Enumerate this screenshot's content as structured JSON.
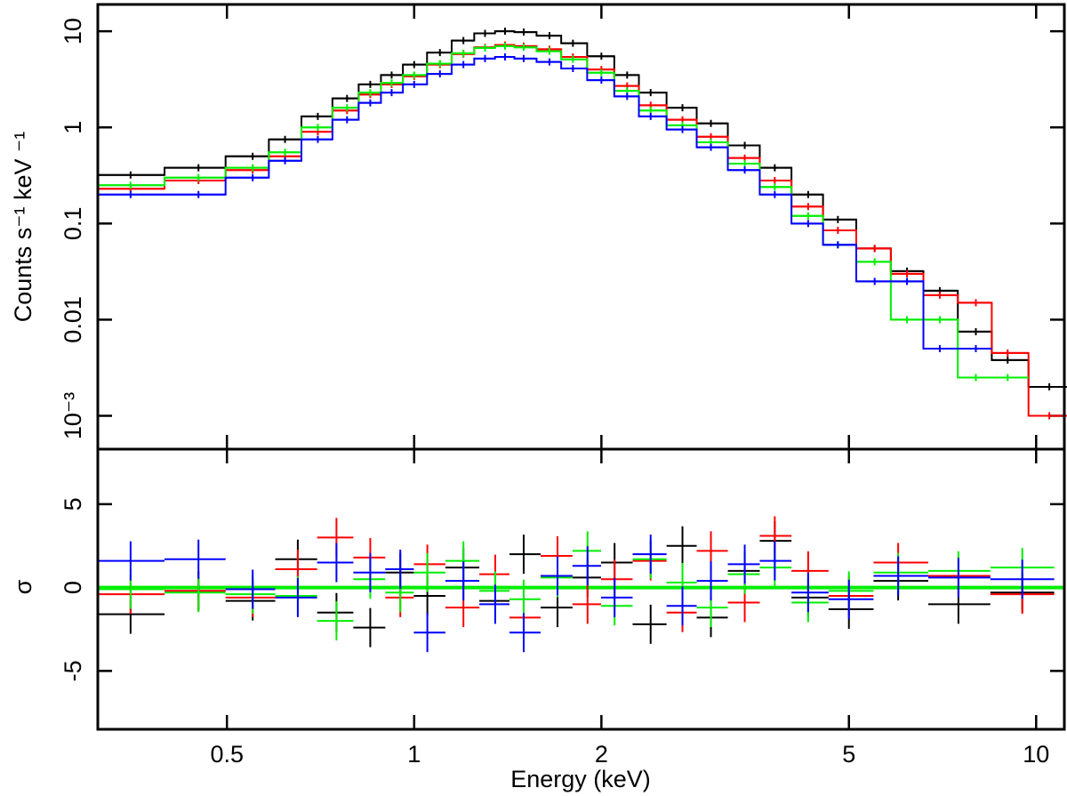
{
  "chart_data": [
    {
      "type": "line",
      "ylabel": "Counts s⁻¹ keV ⁻¹",
      "xlog": true,
      "ylog": true,
      "xlim": [
        0.31,
        11.1
      ],
      "ylim": [
        0.00045,
        19
      ],
      "yticks": [
        10,
        1,
        0.1,
        0.01,
        {
          "value": 0.001,
          "label": "10⁻³"
        }
      ],
      "x": [
        0.35,
        0.45,
        0.55,
        0.62,
        0.7,
        0.78,
        0.85,
        0.92,
        1.0,
        1.1,
        1.2,
        1.3,
        1.4,
        1.5,
        1.65,
        1.8,
        2.0,
        2.2,
        2.4,
        2.7,
        3.0,
        3.4,
        3.8,
        4.3,
        4.8,
        5.5,
        6.2,
        7.0,
        8.0,
        9.0,
        10.5
      ],
      "series": [
        {
          "color": "#000000",
          "values": [
            0.32,
            0.38,
            0.5,
            0.75,
            1.3,
            2.0,
            2.8,
            3.5,
            4.5,
            6,
            8,
            9.5,
            10,
            9.8,
            9,
            7.5,
            5.5,
            3.5,
            2.3,
            1.6,
            1.1,
            0.65,
            0.38,
            0.2,
            0.11,
            0.055,
            0.032,
            0.02,
            0.0075,
            0.0038,
            0.002
          ]
        },
        {
          "color": "#ff0000",
          "values": [
            0.23,
            0.28,
            0.36,
            0.5,
            0.9,
            1.5,
            2.2,
            2.8,
            3.4,
            4.5,
            5.8,
            6.8,
            7.2,
            7.0,
            6.5,
            5.4,
            4.0,
            2.7,
            1.7,
            1.2,
            0.8,
            0.48,
            0.28,
            0.15,
            0.085,
            0.055,
            0.03,
            0.018,
            0.015,
            0.0045,
            0.001
          ]
        },
        {
          "color": "#00ee00",
          "values": [
            0.25,
            0.3,
            0.38,
            0.55,
            1.0,
            1.6,
            2.3,
            2.9,
            3.5,
            4.6,
            5.9,
            6.7,
            7.0,
            6.8,
            6.2,
            5.1,
            3.7,
            2.4,
            1.5,
            1.05,
            0.7,
            0.42,
            0.24,
            0.12,
            0.06,
            0.04,
            0.01,
            0.01,
            0.0025,
            0.0025,
            null
          ]
        },
        {
          "color": "#0000ff",
          "values": [
            0.2,
            0.2,
            0.3,
            0.45,
            0.75,
            1.2,
            1.8,
            2.3,
            2.8,
            3.6,
            4.5,
            5.2,
            5.4,
            5.2,
            4.8,
            4.1,
            3.1,
            2.1,
            1.3,
            0.95,
            0.62,
            0.36,
            0.2,
            0.1,
            0.06,
            0.025,
            0.025,
            0.005,
            0.005,
            null,
            null
          ]
        }
      ]
    },
    {
      "type": "scatter",
      "xlabel": "Energy (keV)",
      "ylabel": "σ",
      "xlog": true,
      "ylog": false,
      "xlim": [
        0.31,
        11.1
      ],
      "ylim": [
        -8.5,
        8.3
      ],
      "xticks": [
        0.5,
        1,
        2,
        5,
        10
      ],
      "yticks": [
        5,
        0,
        -5
      ],
      "hline": 0,
      "hline_color": "#00ee00",
      "x": [
        0.35,
        0.45,
        0.55,
        0.65,
        0.75,
        0.85,
        0.95,
        1.05,
        1.2,
        1.35,
        1.5,
        1.7,
        1.9,
        2.1,
        2.4,
        2.7,
        3.0,
        3.4,
        3.8,
        4.3,
        5.0,
        6.0,
        7.5,
        9.5
      ],
      "series": [
        {
          "color": "#000000",
          "values": [
            -1.6,
            -0.2,
            -0.8,
            1.7,
            -1.5,
            -2.4,
            0.9,
            -0.5,
            1.2,
            -0.8,
            2.0,
            -1.2,
            0.6,
            1.5,
            -2.2,
            2.5,
            -1.8,
            1.0,
            2.8,
            -0.6,
            -1.3,
            0.4,
            -1.0,
            -0.3
          ]
        },
        {
          "color": "#ff0000",
          "values": [
            -0.4,
            -0.2,
            -0.6,
            1.1,
            3.0,
            1.8,
            -0.6,
            1.4,
            -1.2,
            0.8,
            -1.8,
            1.9,
            -1.0,
            0.5,
            1.6,
            -1.5,
            2.2,
            -0.9,
            3.1,
            1.0,
            -0.5,
            1.5,
            0.7,
            -0.4
          ]
        },
        {
          "color": "#00ee00",
          "values": [
            -0.1,
            -0.3,
            -0.4,
            -0.5,
            -2.0,
            0.5,
            -0.3,
            0.9,
            1.6,
            -0.2,
            -0.7,
            0.6,
            2.2,
            -1.1,
            1.7,
            0.3,
            -1.2,
            0.8,
            1.2,
            -0.9,
            -0.2,
            0.9,
            1.0,
            1.2
          ]
        },
        {
          "color": "#0000ff",
          "values": [
            1.6,
            1.7,
            -0.1,
            -0.6,
            1.5,
            0.9,
            1.1,
            -2.7,
            0.4,
            -1.0,
            -2.7,
            0.7,
            1.3,
            -0.6,
            2.0,
            -1.1,
            0.4,
            1.4,
            1.6,
            -0.3,
            -0.7,
            0.7,
            0.6,
            0.5
          ]
        }
      ]
    }
  ]
}
